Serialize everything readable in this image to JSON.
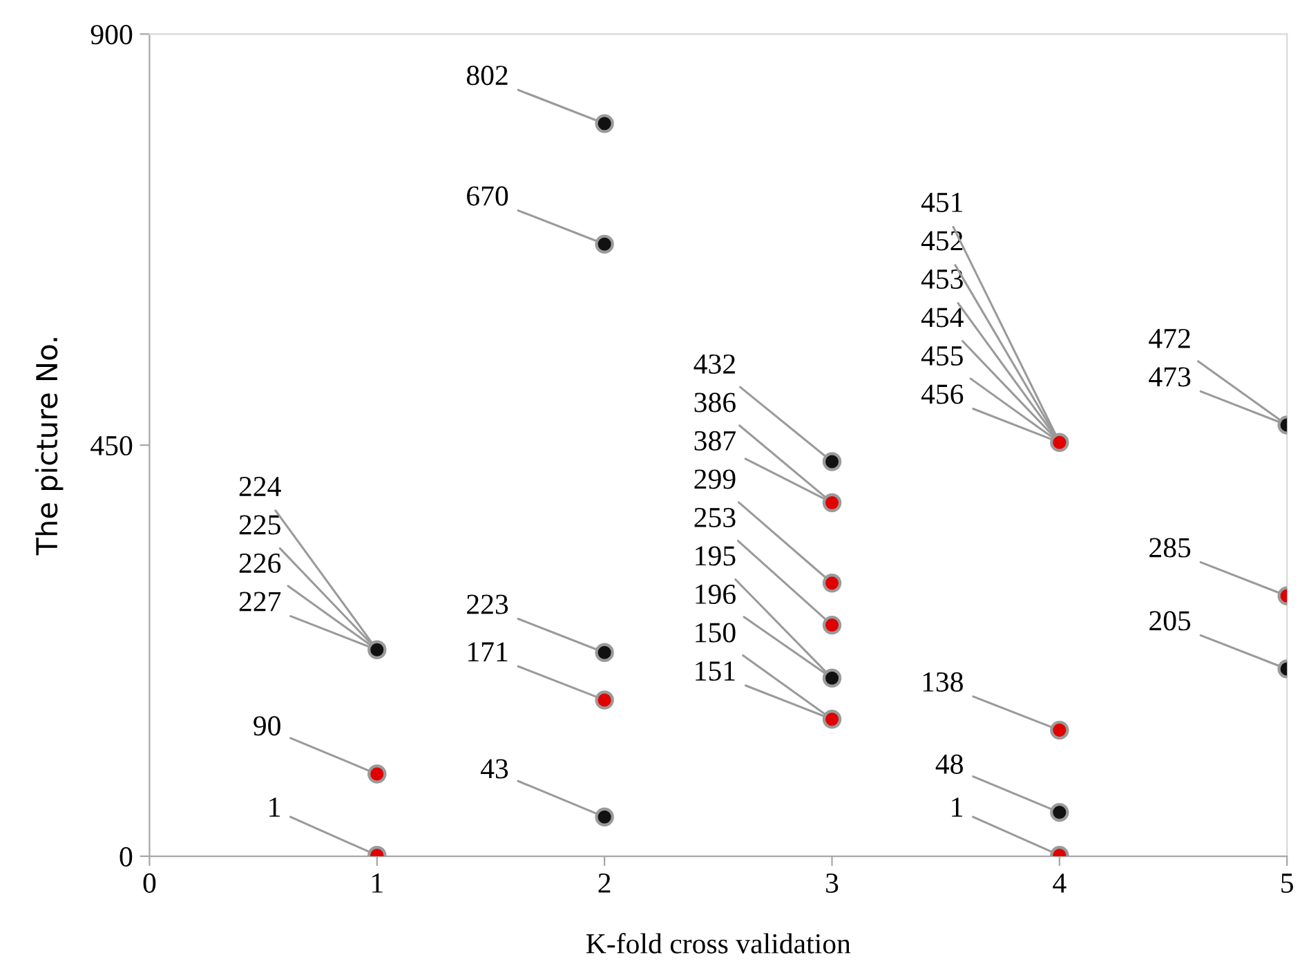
{
  "chart_data": {
    "type": "scatter",
    "xlabel": "K-fold cross validation",
    "ylabel": "The picture No.",
    "xlim": [
      0,
      5
    ],
    "xticks": [
      0,
      1,
      2,
      3,
      4,
      5
    ],
    "ylim": [
      0,
      900
    ],
    "yticks": [
      0,
      450,
      900
    ],
    "grid": false,
    "marker": "circle",
    "series": [
      {
        "color": "#e00000",
        "x": [
          1,
          1,
          2,
          3,
          3,
          3,
          3,
          4,
          4,
          4,
          5
        ],
        "values": [
          1,
          90,
          171,
          150,
          253,
          299,
          387,
          1,
          138,
          453,
          285
        ]
      },
      {
        "color": "#111111",
        "x": [
          1,
          2,
          2,
          2,
          2,
          3,
          3,
          4,
          5,
          5
        ],
        "values": [
          226,
          43,
          223,
          670,
          802,
          195,
          432,
          48,
          205,
          472
        ]
      }
    ],
    "annotations": [
      {
        "text": "224",
        "x": 1,
        "y": 226
      },
      {
        "text": "225",
        "x": 1,
        "y": 226
      },
      {
        "text": "226",
        "x": 1,
        "y": 226
      },
      {
        "text": "227",
        "x": 1,
        "y": 226
      },
      {
        "text": "90",
        "x": 1,
        "y": 90
      },
      {
        "text": "1",
        "x": 1,
        "y": 1
      },
      {
        "text": "802",
        "x": 2,
        "y": 802
      },
      {
        "text": "670",
        "x": 2,
        "y": 670
      },
      {
        "text": "223",
        "x": 2,
        "y": 223
      },
      {
        "text": "171",
        "x": 2,
        "y": 171
      },
      {
        "text": "43",
        "x": 2,
        "y": 43
      },
      {
        "text": "432",
        "x": 3,
        "y": 432
      },
      {
        "text": "386",
        "x": 3,
        "y": 387
      },
      {
        "text": "387",
        "x": 3,
        "y": 387
      },
      {
        "text": "299",
        "x": 3,
        "y": 299
      },
      {
        "text": "253",
        "x": 3,
        "y": 253
      },
      {
        "text": "195",
        "x": 3,
        "y": 195
      },
      {
        "text": "196",
        "x": 3,
        "y": 195
      },
      {
        "text": "150",
        "x": 3,
        "y": 150
      },
      {
        "text": "151",
        "x": 3,
        "y": 150
      },
      {
        "text": "451",
        "x": 4,
        "y": 453
      },
      {
        "text": "452",
        "x": 4,
        "y": 453
      },
      {
        "text": "453",
        "x": 4,
        "y": 453
      },
      {
        "text": "454",
        "x": 4,
        "y": 453
      },
      {
        "text": "455",
        "x": 4,
        "y": 453
      },
      {
        "text": "456",
        "x": 4,
        "y": 453
      },
      {
        "text": "138",
        "x": 4,
        "y": 138
      },
      {
        "text": "48",
        "x": 4,
        "y": 48
      },
      {
        "text": "1",
        "x": 4,
        "y": 1
      },
      {
        "text": "472",
        "x": 5,
        "y": 472
      },
      {
        "text": "473",
        "x": 5,
        "y": 472
      },
      {
        "text": "285",
        "x": 5,
        "y": 285
      },
      {
        "text": "205",
        "x": 5,
        "y": 205
      }
    ]
  }
}
